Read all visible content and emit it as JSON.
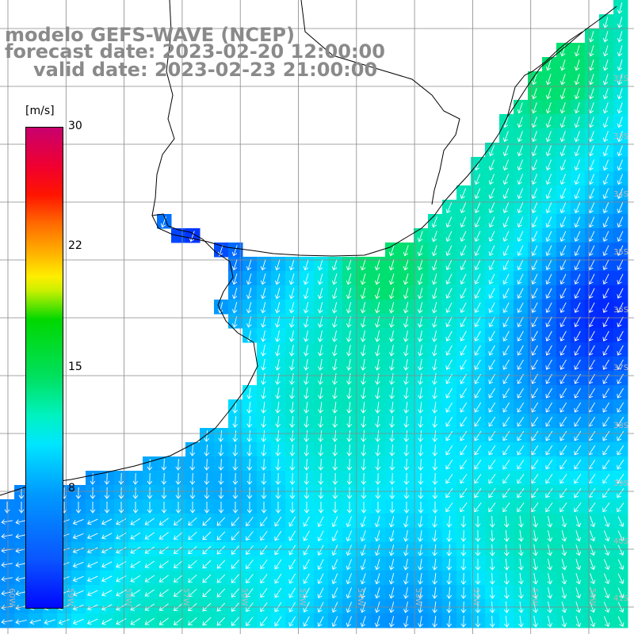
{
  "title": {
    "line1": "modelo GEFS-WAVE (NCEP)",
    "line2": "forecast date: 2023-02-20 12:00:00",
    "line3": "valid date: 2023-02-23 21:00:00"
  },
  "colorbar": {
    "unit": "[m/s]",
    "ticks": [
      "30",
      "22",
      "15",
      "8"
    ],
    "colors": [
      "#0008ff",
      "#00e5ff",
      "#00d800",
      "#ffee00",
      "#ff1400",
      "#c8006e"
    ]
  },
  "longitude_labels": [
    "60W",
    "59W",
    "58W",
    "57W",
    "56W",
    "55W",
    "54W",
    "53W",
    "52W",
    "51W",
    "50W"
  ],
  "latitude_labels": [
    "32S",
    "33S",
    "34S",
    "35S",
    "36S",
    "37S",
    "38S",
    "39S",
    "40S",
    "41S"
  ],
  "field": {
    "variable": "wind speed",
    "color_low": "#0020ff",
    "color_mid": "#00e8ff",
    "color_high": "#00e070",
    "land_color": "#ffffff",
    "coast_color": "#000000",
    "grid_color": "#888888",
    "arrow_color": "#ffffff"
  }
}
